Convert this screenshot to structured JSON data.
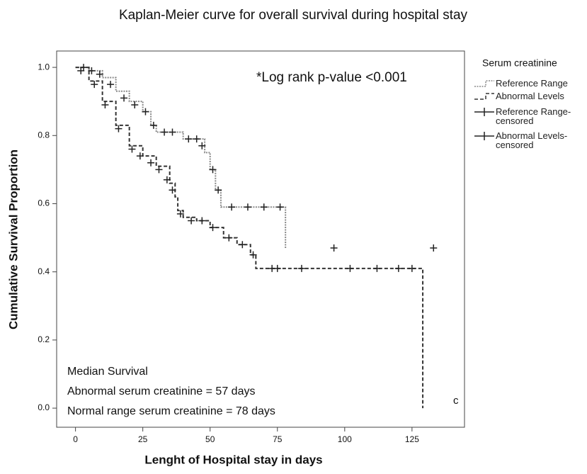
{
  "chart_data": {
    "type": "step",
    "title": "Kaplan-Meier curve for overall survival during hospital stay",
    "x_label": "Lenght of Hospital stay in days",
    "y_label": "Cumulative Survival Proportion",
    "legend_title": "Serum creatinine",
    "legend": "right",
    "annotations": [
      "*Log rank p-value <0.001",
      "Median Survival",
      "Abnormal serum creatinine = 57 days",
      "Normal range serum creatinine = 78 days",
      "c"
    ],
    "xlim": [
      -7,
      144.5
    ],
    "ylim": [
      -0.056,
      1.048
    ],
    "xticks": [
      0,
      25,
      50,
      75,
      100,
      125
    ],
    "yticks": [
      {
        "value": 0,
        "label": "0.0"
      },
      {
        "value": 0.2,
        "label": "0.2"
      },
      {
        "value": 0.4,
        "label": "0.4"
      },
      {
        "value": 0.6,
        "label": "0.6"
      },
      {
        "value": 0.8,
        "label": "0.8"
      },
      {
        "value": 1,
        "label": "1.0"
      }
    ],
    "series": [
      {
        "name": "Reference Range",
        "color": "#8a8a8a",
        "dash": "2,1.5",
        "marker": "step",
        "x": [
          0,
          5,
          10,
          15,
          20,
          25,
          28,
          30,
          40,
          48,
          50,
          52,
          54,
          78
        ],
        "values": [
          1.0,
          0.99,
          0.97,
          0.93,
          0.9,
          0.87,
          0.83,
          0.81,
          0.79,
          0.75,
          0.7,
          0.64,
          0.59,
          0.47
        ]
      },
      {
        "name": "Abnormal Levels",
        "color": "#333333",
        "dash": "5,3",
        "marker": "step",
        "x": [
          0,
          5,
          10,
          15,
          20,
          25,
          30,
          35,
          37,
          38,
          40,
          45,
          50,
          55,
          60,
          65,
          67,
          129
        ],
        "values": [
          1.0,
          0.96,
          0.9,
          0.83,
          0.77,
          0.74,
          0.71,
          0.66,
          0.62,
          0.58,
          0.56,
          0.55,
          0.53,
          0.5,
          0.48,
          0.45,
          0.41,
          0.0
        ]
      },
      {
        "name": "Reference Range-censored",
        "color": "#222222",
        "marker": "plus",
        "x": [
          3,
          6,
          9,
          13,
          18,
          22,
          26,
          29,
          33,
          36,
          42,
          45,
          47,
          51,
          53,
          58,
          64,
          70,
          76,
          96,
          133
        ],
        "values": [
          1.0,
          0.99,
          0.98,
          0.95,
          0.91,
          0.89,
          0.87,
          0.83,
          0.81,
          0.81,
          0.79,
          0.79,
          0.77,
          0.7,
          0.64,
          0.59,
          0.59,
          0.59,
          0.59,
          0.47,
          0.47
        ]
      },
      {
        "name": "Abnormal Levels-censored",
        "color": "#222222",
        "marker": "plus",
        "x": [
          2,
          7,
          11,
          16,
          21,
          24,
          28,
          31,
          34,
          36,
          39,
          43,
          47,
          51,
          57,
          62,
          66,
          73,
          75,
          84,
          102,
          112,
          120,
          125
        ],
        "values": [
          0.99,
          0.95,
          0.89,
          0.82,
          0.76,
          0.74,
          0.72,
          0.7,
          0.67,
          0.64,
          0.57,
          0.55,
          0.55,
          0.53,
          0.5,
          0.48,
          0.45,
          0.41,
          0.41,
          0.41,
          0.41,
          0.41,
          0.41,
          0.41
        ]
      }
    ]
  }
}
